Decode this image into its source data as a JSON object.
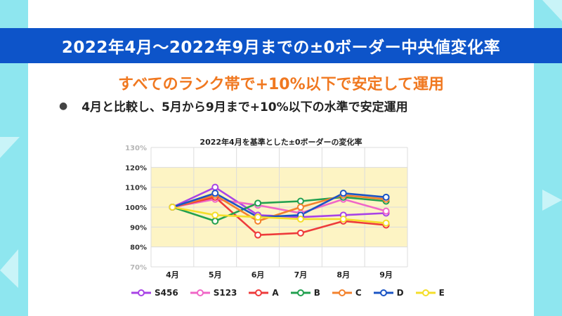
{
  "header": {
    "title": "2022年4月～2022年9月までの±0ボーダー中央値変化率"
  },
  "subtitle": "すべてのランク帯で+10%以下で安定して運用",
  "bullet": {
    "marker": "●",
    "text": "4月と比較し、5月から9月まで+10%以下の水準で安定運用"
  },
  "colors": {
    "background": "#8ee6ef",
    "title_bar": "#0d54c9",
    "accent": "#f07820",
    "band": "#fdf4c4"
  },
  "chart_data": {
    "type": "line",
    "title": "2022年4月を基準とした±0ボーダーの変化率",
    "xlabel": "",
    "ylabel": "",
    "categories": [
      "4月",
      "5月",
      "6月",
      "7月",
      "8月",
      "9月"
    ],
    "y_ticks": [
      {
        "value": 70,
        "label": "70%"
      },
      {
        "value": 80,
        "label": "80%"
      },
      {
        "value": 90,
        "label": "90%"
      },
      {
        "value": 100,
        "label": "100%"
      },
      {
        "value": 110,
        "label": "110%"
      },
      {
        "value": 120,
        "label": "120%"
      },
      {
        "value": 130,
        "label": "130%"
      }
    ],
    "ylim": [
      70,
      130
    ],
    "highlight_band": [
      80,
      120
    ],
    "grid": true,
    "legend_position": "bottom",
    "series": [
      {
        "name": "S456",
        "color": "#a843e6",
        "values": [
          100,
          110,
          96,
          95,
          96,
          97
        ]
      },
      {
        "name": "S123",
        "color": "#f067c7",
        "values": [
          100,
          104,
          101,
          97,
          104,
          98
        ]
      },
      {
        "name": "A",
        "color": "#ee3b3b",
        "values": [
          100,
          105,
          86,
          87,
          93,
          91
        ]
      },
      {
        "name": "B",
        "color": "#22a04f",
        "values": [
          100,
          93,
          102,
          103,
          105,
          103
        ]
      },
      {
        "name": "C",
        "color": "#f3822d",
        "values": [
          100,
          106,
          93,
          100,
          106,
          104
        ]
      },
      {
        "name": "D",
        "color": "#1b54c4",
        "values": [
          100,
          107,
          95,
          96,
          107,
          105
        ]
      },
      {
        "name": "E",
        "color": "#f4de2a",
        "values": [
          100,
          96,
          95,
          94,
          94,
          92
        ]
      }
    ]
  }
}
